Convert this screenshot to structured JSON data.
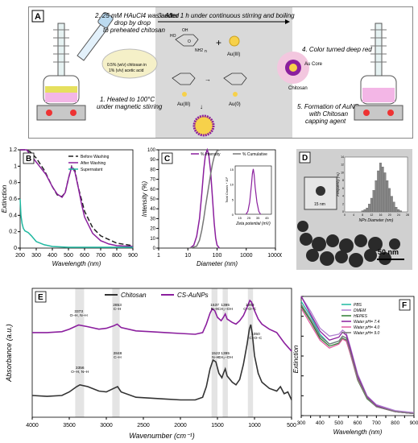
{
  "panelA": {
    "label": "A",
    "step1": "1. Heated to 100°C",
    "step1b": "under magnetic stirring",
    "step2": "2. 25 mM HAuCl4 was added",
    "step2b": "drop by drop",
    "step2c": "to preheated chitosan",
    "step3": "3. After 1 h under continuous stirring and boiling",
    "step4": "4. Color turned deep red",
    "step5": "5. Formation of AuNPs",
    "step5b": "with Chitosan",
    "step5c": "capping agent",
    "chitosan_note1": "0.5% (w/v) chitosan in",
    "chitosan_note2": "1% (v/v) acetic acid",
    "au3": "Au(III)",
    "au3b": "Au(III)",
    "au0": "Au(0)",
    "au_core": "Au Core",
    "chitosan": "Chitosan",
    "plus": "+",
    "n": "n",
    "oh": "OH",
    "ho": "HO",
    "o": "O",
    "nh2": "NH2"
  },
  "chart_data": [
    {
      "id": "B",
      "type": "line",
      "xlabel": "Wavelength (nm)",
      "ylabel": "Extinction",
      "xlim": [
        200,
        900
      ],
      "ylim": [
        0,
        1.2
      ],
      "xticks": [
        "200",
        "300",
        "400",
        "500",
        "600",
        "700",
        "800",
        "900"
      ],
      "yticks": [
        "0",
        "0.2",
        "0.4",
        "0.6",
        "0.8",
        "1",
        "1.2"
      ],
      "legend": [
        "Before Washing",
        "After Washing",
        "Supernatant"
      ],
      "series": [
        {
          "name": "Before Washing",
          "color": "#222222",
          "dash": "6,3",
          "x": [
            200,
            230,
            260,
            300,
            350,
            400,
            430,
            460,
            480,
            500,
            520,
            540,
            560,
            600,
            650,
            700,
            800,
            900
          ],
          "y": [
            1.2,
            1.2,
            1.18,
            1.1,
            0.95,
            0.75,
            0.65,
            0.63,
            0.68,
            0.85,
            1.0,
            0.95,
            0.75,
            0.45,
            0.25,
            0.15,
            0.06,
            0.03
          ]
        },
        {
          "name": "After Washing",
          "color": "#8b1f9e",
          "dash": "",
          "x": [
            200,
            240,
            280,
            320,
            360,
            400,
            430,
            460,
            480,
            500,
            520,
            540,
            560,
            580,
            600,
            650,
            700,
            750,
            800,
            900
          ],
          "y": [
            1.2,
            1.2,
            1.1,
            1.0,
            0.9,
            0.75,
            0.66,
            0.62,
            0.68,
            0.85,
            0.99,
            0.93,
            0.75,
            0.55,
            0.38,
            0.18,
            0.09,
            0.05,
            0.03,
            0.02
          ]
        },
        {
          "name": "Supernatant",
          "color": "#1fb8a0",
          "dash": "",
          "x": [
            200,
            205,
            212,
            220,
            230,
            250,
            270,
            300,
            350,
            400,
            500,
            600,
            700,
            900
          ],
          "y": [
            0.6,
            0.4,
            0.3,
            0.24,
            0.21,
            0.19,
            0.15,
            0.08,
            0.04,
            0.02,
            0.01,
            0.01,
            0.01,
            0.01
          ]
        }
      ]
    },
    {
      "id": "C",
      "type": "line",
      "xlabel": "Diameter (nm)",
      "ylabel": "Intensity (%)",
      "xscale": "log",
      "xlim": [
        1,
        10000
      ],
      "ylim": [
        0,
        100
      ],
      "xticks": [
        "1",
        "10",
        "100",
        "1000",
        "10000"
      ],
      "yticks": [
        "0",
        "10",
        "20",
        "30",
        "40",
        "50",
        "60",
        "70",
        "80",
        "90",
        "100"
      ],
      "legend": [
        "% Intensity",
        "% Cumulative"
      ],
      "series": [
        {
          "name": "% Intensity",
          "color": "#8b1f9e",
          "x": [
            12,
            16,
            20,
            25,
            30,
            35,
            40,
            46,
            52,
            60,
            70,
            80,
            90,
            100,
            120
          ],
          "y": [
            0,
            3,
            12,
            30,
            55,
            80,
            95,
            100,
            95,
            78,
            50,
            25,
            10,
            3,
            0
          ]
        },
        {
          "name": "% Cumulative",
          "color": "#777777",
          "x": [
            12,
            20,
            25,
            30,
            35,
            40,
            50,
            60,
            70,
            80,
            100,
            130
          ],
          "y": [
            0,
            2,
            8,
            18,
            30,
            42,
            60,
            75,
            86,
            93,
            99,
            100
          ]
        }
      ],
      "inset": {
        "xlabel": "Zeta potential (mV)",
        "ylabel": "Total Counts * 10³",
        "xlim": [
          10,
          50
        ],
        "ylim": [
          0,
          16
        ],
        "xticks": [
          "10",
          "15",
          "20",
          "25",
          "30",
          "35",
          "40",
          "45",
          "50"
        ],
        "yticks": [
          "0",
          "5",
          "10",
          "15"
        ],
        "x": [
          22,
          24,
          26,
          28,
          29,
          30,
          31,
          32,
          34,
          36,
          38
        ],
        "y": [
          0,
          1,
          4,
          10,
          13.5,
          15,
          13,
          9,
          4,
          1,
          0
        ]
      }
    },
    {
      "id": "D",
      "type": "bar",
      "title": "",
      "xlabel": "NPs Diameter (nm)",
      "ylabel": "Frequency (%)",
      "xlim": [
        0,
        28
      ],
      "ylim": [
        0,
        14
      ],
      "xticks": [
        "0",
        "2",
        "4",
        "6",
        "8",
        "10",
        "12",
        "14",
        "16",
        "18",
        "20",
        "22",
        "24",
        "26",
        "28"
      ],
      "yticks": [
        "0",
        "2",
        "4",
        "6",
        "8",
        "10",
        "12",
        "14"
      ],
      "x": [
        8,
        9,
        10,
        11,
        12,
        13,
        14,
        15,
        16,
        17,
        18,
        19,
        20,
        21,
        22,
        23,
        24,
        25
      ],
      "values": [
        0.3,
        0.6,
        1,
        2,
        3.5,
        5.5,
        8,
        10.5,
        12.5,
        11.5,
        10,
        8,
        6,
        4,
        2.5,
        1.2,
        0.6,
        0.3
      ],
      "inset_scale": "15 nm",
      "scale": "50 nm"
    },
    {
      "id": "E",
      "type": "line",
      "xlabel": "Wavenumber (cm⁻¹)",
      "ylabel": "Absorbance (a.u.)",
      "xlim": [
        4000,
        500
      ],
      "xticks": [
        "4000",
        "3500",
        "3000",
        "2500",
        "2000",
        "1500",
        "1000",
        "500"
      ],
      "legend": [
        "Chitosan",
        "CS-AuNPs"
      ],
      "annotations_top": [
        {
          "x": 3373,
          "t1": "3373",
          "t2": "O–H, N–H"
        },
        {
          "x": 2853,
          "t1": "2853",
          "t2": "C–H"
        },
        {
          "x": 1537,
          "t1": "1537",
          "t2": "N–H"
        },
        {
          "x": 1395,
          "t1": "1395",
          "t2": "CH₂–OH"
        },
        {
          "x": 1063,
          "t1": "1063",
          "t2": "C–O–C"
        },
        {
          "x": 1050,
          "t1": "1050",
          "t2": "C–O–C"
        }
      ],
      "annotations_bottom": [
        {
          "x": 3356,
          "t1": "3356",
          "t2": "O–H, N–H"
        },
        {
          "x": 2848,
          "t1": "2848",
          "t2": "C–H"
        },
        {
          "x": 1522,
          "t1": "1522",
          "t2": "N–H"
        },
        {
          "x": 1395,
          "t1": "1395",
          "t2": "CH₂–OH"
        }
      ],
      "series": [
        {
          "name": "Chitosan",
          "color": "#333333",
          "x": [
            4000,
            3800,
            3600,
            3500,
            3400,
            3356,
            3250,
            3100,
            3000,
            2900,
            2848,
            2800,
            2600,
            2400,
            2200,
            2000,
            1800,
            1700,
            1650,
            1600,
            1560,
            1522,
            1480,
            1440,
            1420,
            1395,
            1370,
            1300,
            1250,
            1200,
            1150,
            1100,
            1070,
            1050,
            1030,
            1000,
            950,
            900,
            800,
            700,
            650,
            600,
            550,
            500
          ],
          "y": [
            0.2,
            0.19,
            0.2,
            0.24,
            0.3,
            0.32,
            0.3,
            0.25,
            0.24,
            0.28,
            0.3,
            0.24,
            0.18,
            0.17,
            0.16,
            0.15,
            0.15,
            0.18,
            0.3,
            0.5,
            0.6,
            0.58,
            0.45,
            0.4,
            0.45,
            0.5,
            0.42,
            0.35,
            0.32,
            0.38,
            0.55,
            0.78,
            0.95,
            1.0,
            0.9,
            0.65,
            0.45,
            0.35,
            0.28,
            0.25,
            0.3,
            0.22,
            0.24,
            0.15
          ]
        },
        {
          "name": "CS-AuNPs",
          "color": "#8b1f9e",
          "x": [
            4000,
            3800,
            3600,
            3500,
            3400,
            3373,
            3250,
            3100,
            3000,
            2900,
            2853,
            2800,
            2600,
            2400,
            2200,
            2000,
            1800,
            1700,
            1650,
            1600,
            1570,
            1537,
            1500,
            1450,
            1420,
            1395,
            1370,
            1300,
            1250,
            1200,
            1150,
            1100,
            1063,
            1040,
            1000,
            950,
            900,
            800,
            700,
            600,
            550,
            500
          ],
          "y": [
            0.62,
            0.62,
            0.63,
            0.66,
            0.7,
            0.71,
            0.69,
            0.66,
            0.67,
            0.7,
            0.72,
            0.68,
            0.64,
            0.63,
            0.62,
            0.61,
            0.6,
            0.62,
            0.72,
            0.85,
            0.9,
            0.88,
            0.8,
            0.76,
            0.8,
            0.84,
            0.78,
            0.74,
            0.72,
            0.76,
            0.82,
            0.92,
            1.0,
            0.98,
            0.88,
            0.78,
            0.72,
            0.66,
            0.62,
            0.5,
            0.45,
            0.4
          ]
        }
      ]
    },
    {
      "id": "F",
      "type": "line",
      "xlabel": "Wavelength (nm)",
      "ylabel": "Extinction",
      "xlim": [
        300,
        900
      ],
      "ylim": [
        0,
        1.2
      ],
      "xticks": [
        "300",
        "350",
        "400",
        "450",
        "500",
        "550",
        "600",
        "650",
        "700",
        "750",
        "800",
        "850",
        "900"
      ],
      "yticks": [
        "0",
        "0.2",
        "0.4",
        "0.6",
        "0.8",
        "1",
        "1.2"
      ],
      "legend": [
        "PBS",
        "DMEM",
        "HEPES",
        "Water pH= 7.4",
        "Water pH= 4.0",
        "Water pH= 9.0"
      ],
      "series": [
        {
          "name": "PBS",
          "color": "#1fb8a0",
          "x": [
            300,
            350,
            400,
            450,
            500,
            520,
            540,
            560,
            600,
            650,
            700,
            800,
            900
          ],
          "y": [
            1.15,
            1.0,
            0.82,
            0.72,
            0.75,
            0.8,
            0.78,
            0.65,
            0.38,
            0.18,
            0.1,
            0.04,
            0.02
          ]
        },
        {
          "name": "DMEM",
          "color": "#b080d0",
          "x": [
            300,
            350,
            400,
            450,
            500,
            520,
            540,
            560,
            600,
            650,
            700,
            800,
            900
          ],
          "y": [
            1.2,
            1.05,
            0.88,
            0.8,
            0.82,
            0.86,
            0.83,
            0.7,
            0.42,
            0.2,
            0.11,
            0.05,
            0.03
          ]
        },
        {
          "name": "HEPES",
          "color": "#2e7d32",
          "x": [
            300,
            350,
            400,
            450,
            500,
            520,
            540,
            560,
            600,
            650,
            700,
            800,
            900
          ],
          "y": [
            1.1,
            0.95,
            0.78,
            0.7,
            0.73,
            0.78,
            0.76,
            0.63,
            0.36,
            0.17,
            0.09,
            0.04,
            0.02
          ]
        },
        {
          "name": "Water pH= 7.4",
          "color": "#8b1f9e",
          "x": [
            300,
            350,
            400,
            450,
            500,
            520,
            540,
            560,
            600,
            650,
            700,
            800,
            900
          ],
          "y": [
            1.2,
            1.02,
            0.85,
            0.76,
            0.79,
            0.84,
            0.81,
            0.68,
            0.4,
            0.19,
            0.1,
            0.04,
            0.02
          ]
        },
        {
          "name": "Water pH= 4.0",
          "color": "#e05ba0",
          "x": [
            300,
            350,
            400,
            450,
            500,
            520,
            540,
            560,
            600,
            650,
            700,
            800,
            900
          ],
          "y": [
            1.08,
            0.92,
            0.76,
            0.68,
            0.72,
            0.77,
            0.75,
            0.63,
            0.37,
            0.18,
            0.09,
            0.04,
            0.02
          ]
        },
        {
          "name": "Water pH= 9.0",
          "color": "#777777",
          "x": [
            300,
            350,
            400,
            450,
            500,
            520,
            540,
            560,
            600,
            650,
            700,
            800,
            900
          ],
          "y": [
            1.12,
            0.97,
            0.8,
            0.72,
            0.75,
            0.8,
            0.78,
            0.65,
            0.38,
            0.18,
            0.09,
            0.04,
            0.02
          ]
        }
      ]
    }
  ],
  "labels": {
    "B": "B",
    "C": "C",
    "D": "D",
    "E": "E",
    "F": "F"
  }
}
